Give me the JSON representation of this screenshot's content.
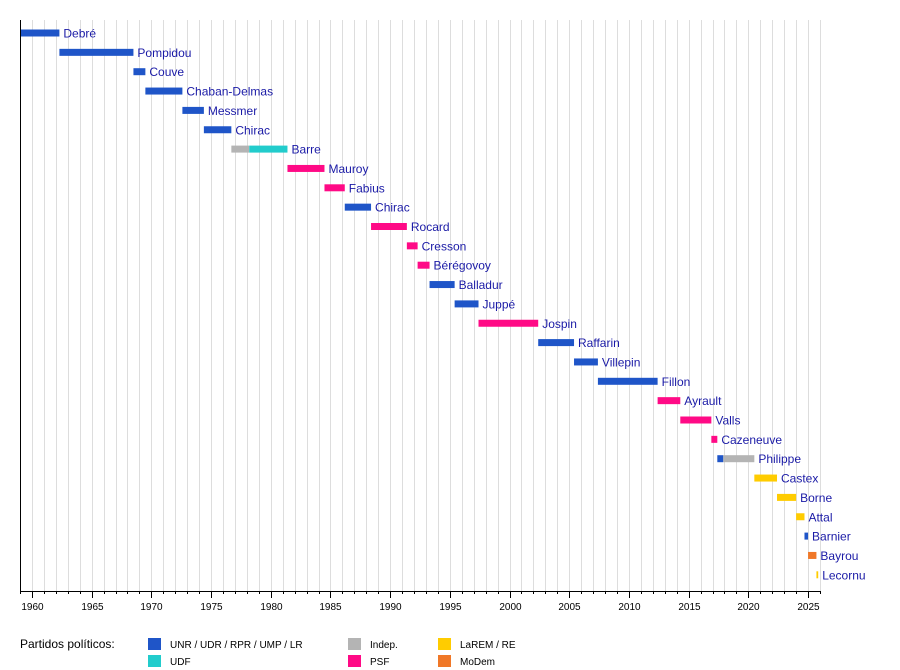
{
  "chart_data": {
    "type": "timeline",
    "title": "",
    "xlabel": "",
    "ylabel": "",
    "x_range": [
      1959,
      2026
    ],
    "x_ticks": [
      "1960",
      "1965",
      "1970",
      "1975",
      "1980",
      "1985",
      "1990",
      "1995",
      "2000",
      "2005",
      "2010",
      "2015",
      "2020",
      "2025"
    ],
    "grid": "vertical",
    "parties": {
      "UNR": "#1f55c8",
      "UDF": "#22cccc",
      "INDEP": "#b4b4b4",
      "PSF": "#ff0a86",
      "LAREM": "#ffcc00",
      "MODEM": "#f07828"
    },
    "rows": [
      {
        "name": "Debré",
        "segments": [
          {
            "start": 1959.0,
            "end": 1962.3,
            "party": "UNR"
          }
        ]
      },
      {
        "name": "Pompidou",
        "segments": [
          {
            "start": 1962.3,
            "end": 1968.5,
            "party": "UNR"
          }
        ]
      },
      {
        "name": "Couve",
        "segments": [
          {
            "start": 1968.5,
            "end": 1969.5,
            "party": "UNR"
          }
        ]
      },
      {
        "name": "Chaban-Delmas",
        "segments": [
          {
            "start": 1969.5,
            "end": 1972.6,
            "party": "UNR"
          }
        ]
      },
      {
        "name": "Messmer",
        "segments": [
          {
            "start": 1972.6,
            "end": 1974.4,
            "party": "UNR"
          }
        ]
      },
      {
        "name": "Chirac",
        "segments": [
          {
            "start": 1974.4,
            "end": 1976.7,
            "party": "UNR"
          }
        ]
      },
      {
        "name": "Barre",
        "segments": [
          {
            "start": 1976.7,
            "end": 1978.2,
            "party": "INDEP"
          },
          {
            "start": 1978.2,
            "end": 1981.4,
            "party": "UDF"
          }
        ]
      },
      {
        "name": "Mauroy",
        "segments": [
          {
            "start": 1981.4,
            "end": 1984.5,
            "party": "PSF"
          }
        ]
      },
      {
        "name": "Fabius",
        "segments": [
          {
            "start": 1984.5,
            "end": 1986.2,
            "party": "PSF"
          }
        ]
      },
      {
        "name": "Chirac",
        "segments": [
          {
            "start": 1986.2,
            "end": 1988.4,
            "party": "UNR"
          }
        ]
      },
      {
        "name": "Rocard",
        "segments": [
          {
            "start": 1988.4,
            "end": 1991.4,
            "party": "PSF"
          }
        ]
      },
      {
        "name": "Cresson",
        "segments": [
          {
            "start": 1991.4,
            "end": 1992.3,
            "party": "PSF"
          }
        ]
      },
      {
        "name": "Bérégovoy",
        "segments": [
          {
            "start": 1992.3,
            "end": 1993.3,
            "party": "PSF"
          }
        ]
      },
      {
        "name": "Balladur",
        "segments": [
          {
            "start": 1993.3,
            "end": 1995.4,
            "party": "UNR"
          }
        ]
      },
      {
        "name": "Juppé",
        "segments": [
          {
            "start": 1995.4,
            "end": 1997.4,
            "party": "UNR"
          }
        ]
      },
      {
        "name": "Jospin",
        "segments": [
          {
            "start": 1997.4,
            "end": 2002.4,
            "party": "PSF"
          }
        ]
      },
      {
        "name": "Raffarin",
        "segments": [
          {
            "start": 2002.4,
            "end": 2005.4,
            "party": "UNR"
          }
        ]
      },
      {
        "name": "Villepin",
        "segments": [
          {
            "start": 2005.4,
            "end": 2007.4,
            "party": "UNR"
          }
        ]
      },
      {
        "name": "Fillon",
        "segments": [
          {
            "start": 2007.4,
            "end": 2012.4,
            "party": "UNR"
          }
        ]
      },
      {
        "name": "Ayrault",
        "segments": [
          {
            "start": 2012.4,
            "end": 2014.3,
            "party": "PSF"
          }
        ]
      },
      {
        "name": "Valls",
        "segments": [
          {
            "start": 2014.3,
            "end": 2016.9,
            "party": "PSF"
          }
        ]
      },
      {
        "name": "Cazeneuve",
        "segments": [
          {
            "start": 2016.9,
            "end": 2017.4,
            "party": "PSF"
          }
        ]
      },
      {
        "name": "Philippe",
        "segments": [
          {
            "start": 2017.4,
            "end": 2017.9,
            "party": "UNR"
          },
          {
            "start": 2017.9,
            "end": 2020.5,
            "party": "INDEP"
          }
        ]
      },
      {
        "name": "Castex",
        "segments": [
          {
            "start": 2020.5,
            "end": 2022.4,
            "party": "LAREM"
          }
        ]
      },
      {
        "name": "Borne",
        "segments": [
          {
            "start": 2022.4,
            "end": 2024.0,
            "party": "LAREM"
          }
        ]
      },
      {
        "name": "Attal",
        "segments": [
          {
            "start": 2024.0,
            "end": 2024.7,
            "party": "LAREM"
          }
        ]
      },
      {
        "name": "Barnier",
        "segments": [
          {
            "start": 2024.7,
            "end": 2025.0,
            "party": "UNR"
          }
        ]
      },
      {
        "name": "Bayrou",
        "segments": [
          {
            "start": 2025.0,
            "end": 2025.7,
            "party": "MODEM"
          }
        ]
      },
      {
        "name": "Lecornu",
        "segments": [
          {
            "start": 2025.7,
            "end": 2025.85,
            "party": "LAREM"
          }
        ]
      }
    ],
    "legend": {
      "title": "Partidos políticos:",
      "items": [
        {
          "label": "UNR / UDR / RPR / UMP / LR",
          "party": "UNR"
        },
        {
          "label": "UDF",
          "party": "UDF"
        },
        {
          "label": "Indep.",
          "party": "INDEP"
        },
        {
          "label": "PSF",
          "party": "PSF"
        },
        {
          "label": "LaREM / RE",
          "party": "LAREM"
        },
        {
          "label": "MoDem",
          "party": "MODEM"
        }
      ]
    }
  }
}
